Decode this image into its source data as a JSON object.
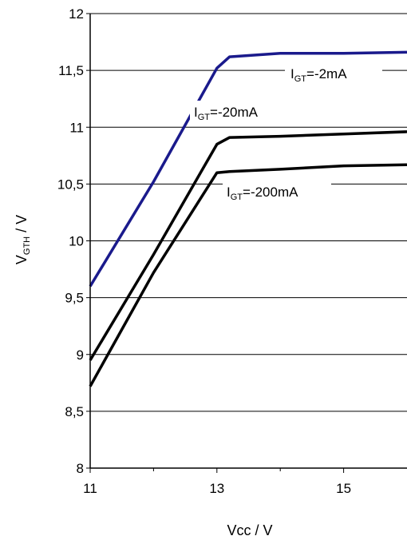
{
  "chart_data": {
    "type": "line",
    "xlabel": "Vcc / V",
    "ylabel": {
      "main": "V",
      "sub": "GTH",
      "suffix": " / V"
    },
    "xlim": [
      11,
      16
    ],
    "ylim": [
      8,
      12
    ],
    "x_ticks": [
      11,
      13,
      15
    ],
    "x_tick_labels": [
      "11",
      "13",
      "15"
    ],
    "y_ticks": [
      8,
      8.5,
      9,
      9.5,
      10,
      10.5,
      11,
      11.5,
      12
    ],
    "y_tick_labels": [
      "8",
      "8,5",
      "9",
      "9,5",
      "10",
      "10,5",
      "11",
      "11,5",
      "12"
    ],
    "grid": "horizontal",
    "series": [
      {
        "name": "IGT=-2mA",
        "label": {
          "main": "I",
          "sub": "GT",
          "suffix": "=-2mA"
        },
        "color": "#1a1a8c",
        "points": [
          [
            11,
            9.6
          ],
          [
            12,
            10.52
          ],
          [
            13,
            11.52
          ],
          [
            13.2,
            11.62
          ],
          [
            14,
            11.65
          ],
          [
            15,
            11.65
          ],
          [
            16,
            11.66
          ]
        ]
      },
      {
        "name": "IGT=-20mA",
        "label": {
          "main": "I",
          "sub": "GT",
          "suffix": "=-20mA"
        },
        "color": "#000000",
        "points": [
          [
            11,
            8.95
          ],
          [
            12,
            9.88
          ],
          [
            13,
            10.85
          ],
          [
            13.2,
            10.91
          ],
          [
            14,
            10.92
          ],
          [
            15,
            10.94
          ],
          [
            16,
            10.96
          ]
        ]
      },
      {
        "name": "IGT=-200mA",
        "label": {
          "main": "I",
          "sub": "GT",
          "suffix": "=-200mA"
        },
        "color": "#000000",
        "points": [
          [
            11,
            8.72
          ],
          [
            12,
            9.72
          ],
          [
            13,
            10.6
          ],
          [
            13.2,
            10.61
          ],
          [
            14,
            10.63
          ],
          [
            15,
            10.66
          ],
          [
            16,
            10.67
          ]
        ]
      }
    ]
  }
}
